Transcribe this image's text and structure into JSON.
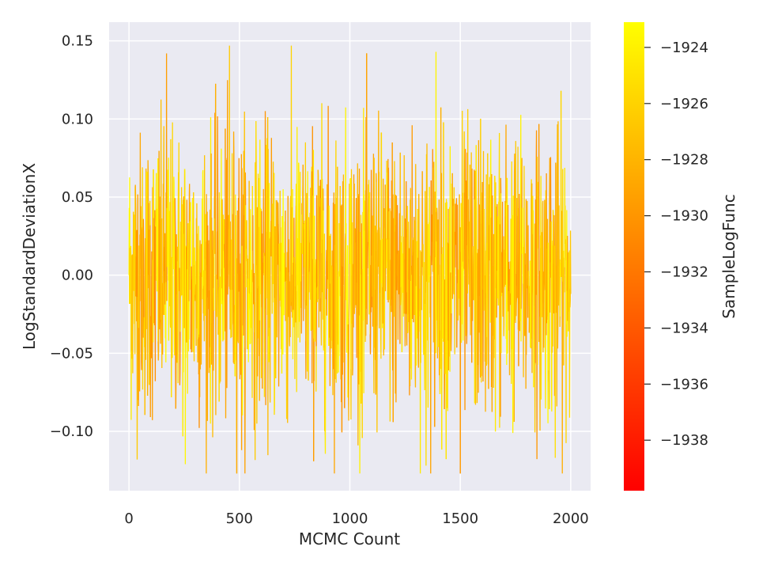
{
  "chart_data": {
    "type": "line",
    "title": "",
    "xlabel": "MCMC Count",
    "ylabel": "LogStandardDeviationX",
    "xlim": [
      -90,
      2090
    ],
    "ylim": [
      -0.138,
      0.162
    ],
    "xticks": [
      0,
      500,
      1000,
      1500,
      2000
    ],
    "xtick_labels": [
      "0",
      "500",
      "1000",
      "1500",
      "2000"
    ],
    "yticks": [
      -0.1,
      -0.05,
      0.0,
      0.05,
      0.1,
      0.15
    ],
    "ytick_labels": [
      "−0.10",
      "−0.05",
      "0.00",
      "0.05",
      "0.10",
      "0.15"
    ],
    "grid": true,
    "series": [
      {
        "x_start": 0,
        "x_end": 2000,
        "n_points": 2000,
        "color_by": "SampleLogFunc",
        "y_range_observed": [
          -0.127,
          0.147
        ],
        "y_mean_approx": 0.0,
        "y_std_approx": 0.045,
        "notable_points": [
          {
            "x": 0,
            "y": 0.0
          },
          {
            "x": 170,
            "y": 0.142
          },
          {
            "x": 255,
            "y": -0.121
          },
          {
            "x": 455,
            "y": 0.147
          },
          {
            "x": 510,
            "y": -0.112
          },
          {
            "x": 1345,
            "y": -0.122
          },
          {
            "x": 1390,
            "y": 0.143
          },
          {
            "x": 1500,
            "y": -0.127
          },
          {
            "x": 1930,
            "y": -0.117
          },
          {
            "x": 2000,
            "y": -0.012
          }
        ]
      }
    ],
    "colorbar": {
      "label": "SampleLogFunc",
      "min": -1939.8,
      "max": -1923.1,
      "ticks": [
        -1938,
        -1936,
        -1934,
        -1932,
        -1930,
        -1928,
        -1926,
        -1924
      ],
      "tick_labels": [
        "−1938",
        "−1936",
        "−1934",
        "−1932",
        "−1930",
        "−1928",
        "−1926",
        "−1924"
      ],
      "colormap": "autumn",
      "color_low": "#ff0000",
      "color_high": "#ffff00"
    }
  },
  "style": {
    "plot_background": "#eaeaf2",
    "grid_color": "#ffffff",
    "text_color": "#262626"
  }
}
